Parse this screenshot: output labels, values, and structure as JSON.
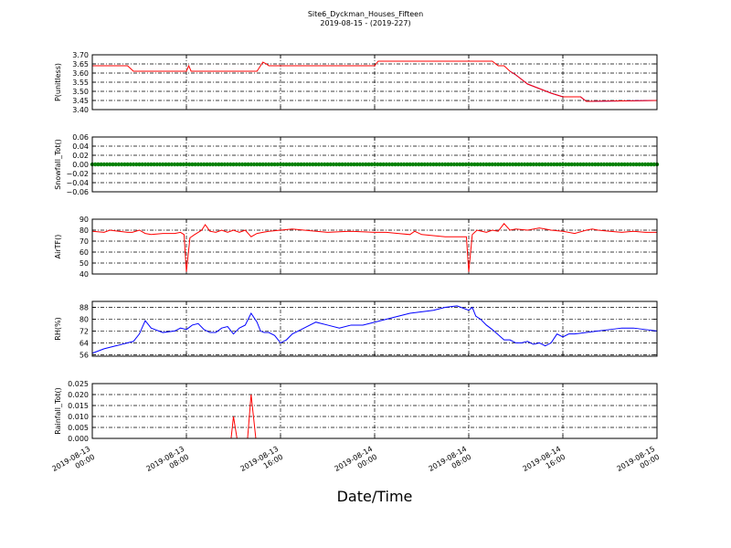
{
  "figure": {
    "title": "Site6_Dyckman_Houses_Fifteen",
    "subtitle": "2019-08-15 - (2019-227)",
    "xlabel": "Date/Time",
    "x_tick_labels": [
      [
        "2019-08-13",
        "00:00"
      ],
      [
        "2019-08-13",
        "08:00"
      ],
      [
        "2019-08-13",
        "16:00"
      ],
      [
        "2019-08-14",
        "00:00"
      ],
      [
        "2019-08-14",
        "08:00"
      ],
      [
        "2019-08-14",
        "16:00"
      ],
      [
        "2019-08-15",
        "00:00"
      ]
    ]
  },
  "chart_data": [
    {
      "type": "line",
      "ylabel": "P(unitless)",
      "color": "#ff0000",
      "color_late": "#0000ff",
      "xlim": [
        0,
        48
      ],
      "ylim": [
        3.4,
        3.7
      ],
      "yticks": [
        "3.40",
        "3.45",
        "3.50",
        "3.55",
        "3.60",
        "3.65",
        "3.70"
      ],
      "grid": true,
      "x": [
        0,
        3,
        3.5,
        8,
        8.2,
        8.4,
        14,
        14.3,
        14.5,
        14.8,
        15,
        24,
        24.3,
        33,
        34,
        34.5,
        35,
        35.5,
        36,
        36.5,
        37,
        38,
        39,
        40,
        41,
        41.5,
        42,
        48
      ],
      "y": [
        3.64,
        3.64,
        3.61,
        3.61,
        3.64,
        3.61,
        3.61,
        3.64,
        3.66,
        3.65,
        3.64,
        3.64,
        3.665,
        3.665,
        3.665,
        3.64,
        3.64,
        3.61,
        3.59,
        3.565,
        3.54,
        3.515,
        3.49,
        3.47,
        3.47,
        3.47,
        3.445,
        3.45
      ]
    },
    {
      "type": "scatter",
      "ylabel": "Snowfall_Tot()",
      "color": "#008000",
      "xlim": [
        0,
        48
      ],
      "ylim": [
        -0.06,
        0.06
      ],
      "yticks": [
        "−0.06",
        "−0.04",
        "−0.02",
        "0.00",
        "0.02",
        "0.04",
        "0.06"
      ],
      "grid": true,
      "value": 0.0
    },
    {
      "type": "line",
      "ylabel": "AirTF()",
      "color": "#ff0000",
      "xlim": [
        0,
        48
      ],
      "ylim": [
        40,
        90
      ],
      "yticks": [
        "40",
        "50",
        "60",
        "70",
        "80",
        "90"
      ],
      "grid": true,
      "x": [
        0,
        1,
        1.5,
        3,
        3.4,
        4,
        4.5,
        5,
        6,
        7,
        7.5,
        7.8,
        8,
        8.3,
        8.7,
        9,
        9.3,
        9.6,
        10,
        10.5,
        11,
        11.5,
        12,
        12.5,
        13,
        13.5,
        14,
        14.5,
        15,
        16,
        17,
        18,
        20,
        22,
        24,
        25,
        26,
        27,
        27.4,
        28,
        30,
        31,
        31.5,
        31.8,
        32,
        32.3,
        32.7,
        33.5,
        34,
        34.5,
        35,
        35.5,
        36,
        37,
        38,
        38.5,
        39,
        40,
        41,
        42,
        42.5,
        43,
        44,
        45,
        46,
        47,
        48
      ],
      "y": [
        79,
        78,
        80,
        78,
        78,
        80,
        77,
        76,
        77,
        77,
        78,
        76,
        42,
        73,
        76,
        78,
        80,
        85,
        79,
        78,
        80,
        78,
        80,
        78,
        80,
        74,
        77,
        78,
        79,
        80,
        81,
        80,
        78,
        79,
        78,
        78,
        77,
        76,
        79,
        76,
        74,
        74,
        74,
        74,
        42,
        76,
        80,
        78,
        80,
        79,
        86,
        80,
        81,
        80,
        82,
        81,
        80,
        79,
        77,
        80,
        81,
        80,
        79,
        78,
        79,
        78,
        78
      ]
    },
    {
      "type": "line",
      "ylabel": "RH(%)",
      "color": "#0000ff",
      "xlim": [
        0,
        48
      ],
      "ylim": [
        55,
        92
      ],
      "yticks": [
        "56",
        "64",
        "72",
        "80",
        "88"
      ],
      "grid": true,
      "x": [
        0,
        1,
        2,
        3,
        3.5,
        4,
        4.5,
        5,
        6,
        7,
        7.5,
        8,
        8.5,
        9,
        9.5,
        10,
        10.5,
        11,
        11.5,
        12,
        12.5,
        13,
        13.5,
        14,
        14.3,
        14.6,
        15,
        15.5,
        16,
        16.5,
        17,
        17.5,
        18,
        19,
        20,
        21,
        22,
        23,
        24,
        25,
        26,
        27,
        28,
        29,
        30,
        31,
        32,
        32.3,
        32.6,
        33,
        33.5,
        34,
        35,
        35.5,
        36,
        36.5,
        37,
        37.5,
        38,
        38.5,
        39,
        39.5,
        40,
        40.5,
        41,
        42,
        43,
        44,
        45,
        46,
        47,
        48
      ],
      "y": [
        57,
        60,
        62,
        64,
        65,
        70,
        79,
        74,
        71,
        72,
        74,
        73,
        76,
        77,
        73,
        71,
        71,
        74,
        75,
        70,
        74,
        76,
        84,
        78,
        72,
        71,
        71,
        69,
        64,
        66,
        70,
        72,
        74,
        78,
        76,
        74,
        76,
        76,
        78,
        80,
        82,
        84,
        85,
        86,
        88,
        89,
        86,
        88,
        82,
        80,
        76,
        73,
        66,
        66,
        64,
        64,
        65,
        63,
        64,
        62,
        64,
        70,
        68,
        70,
        70,
        71,
        72,
        73,
        74,
        74,
        73,
        72
      ]
    },
    {
      "type": "line",
      "ylabel": "Rainfall_Tot()",
      "color": "#ff0000",
      "xlim": [
        0,
        48
      ],
      "ylim": [
        0,
        0.025
      ],
      "yticks": [
        "0.000",
        "0.005",
        "0.010",
        "0.015",
        "0.020",
        "0.025"
      ],
      "grid": true,
      "x": [
        0,
        11.8,
        12,
        12.3,
        13.2,
        13.5,
        13.9,
        48
      ],
      "y": [
        0,
        0,
        0.01,
        0,
        0,
        0.02,
        0,
        0
      ]
    }
  ]
}
